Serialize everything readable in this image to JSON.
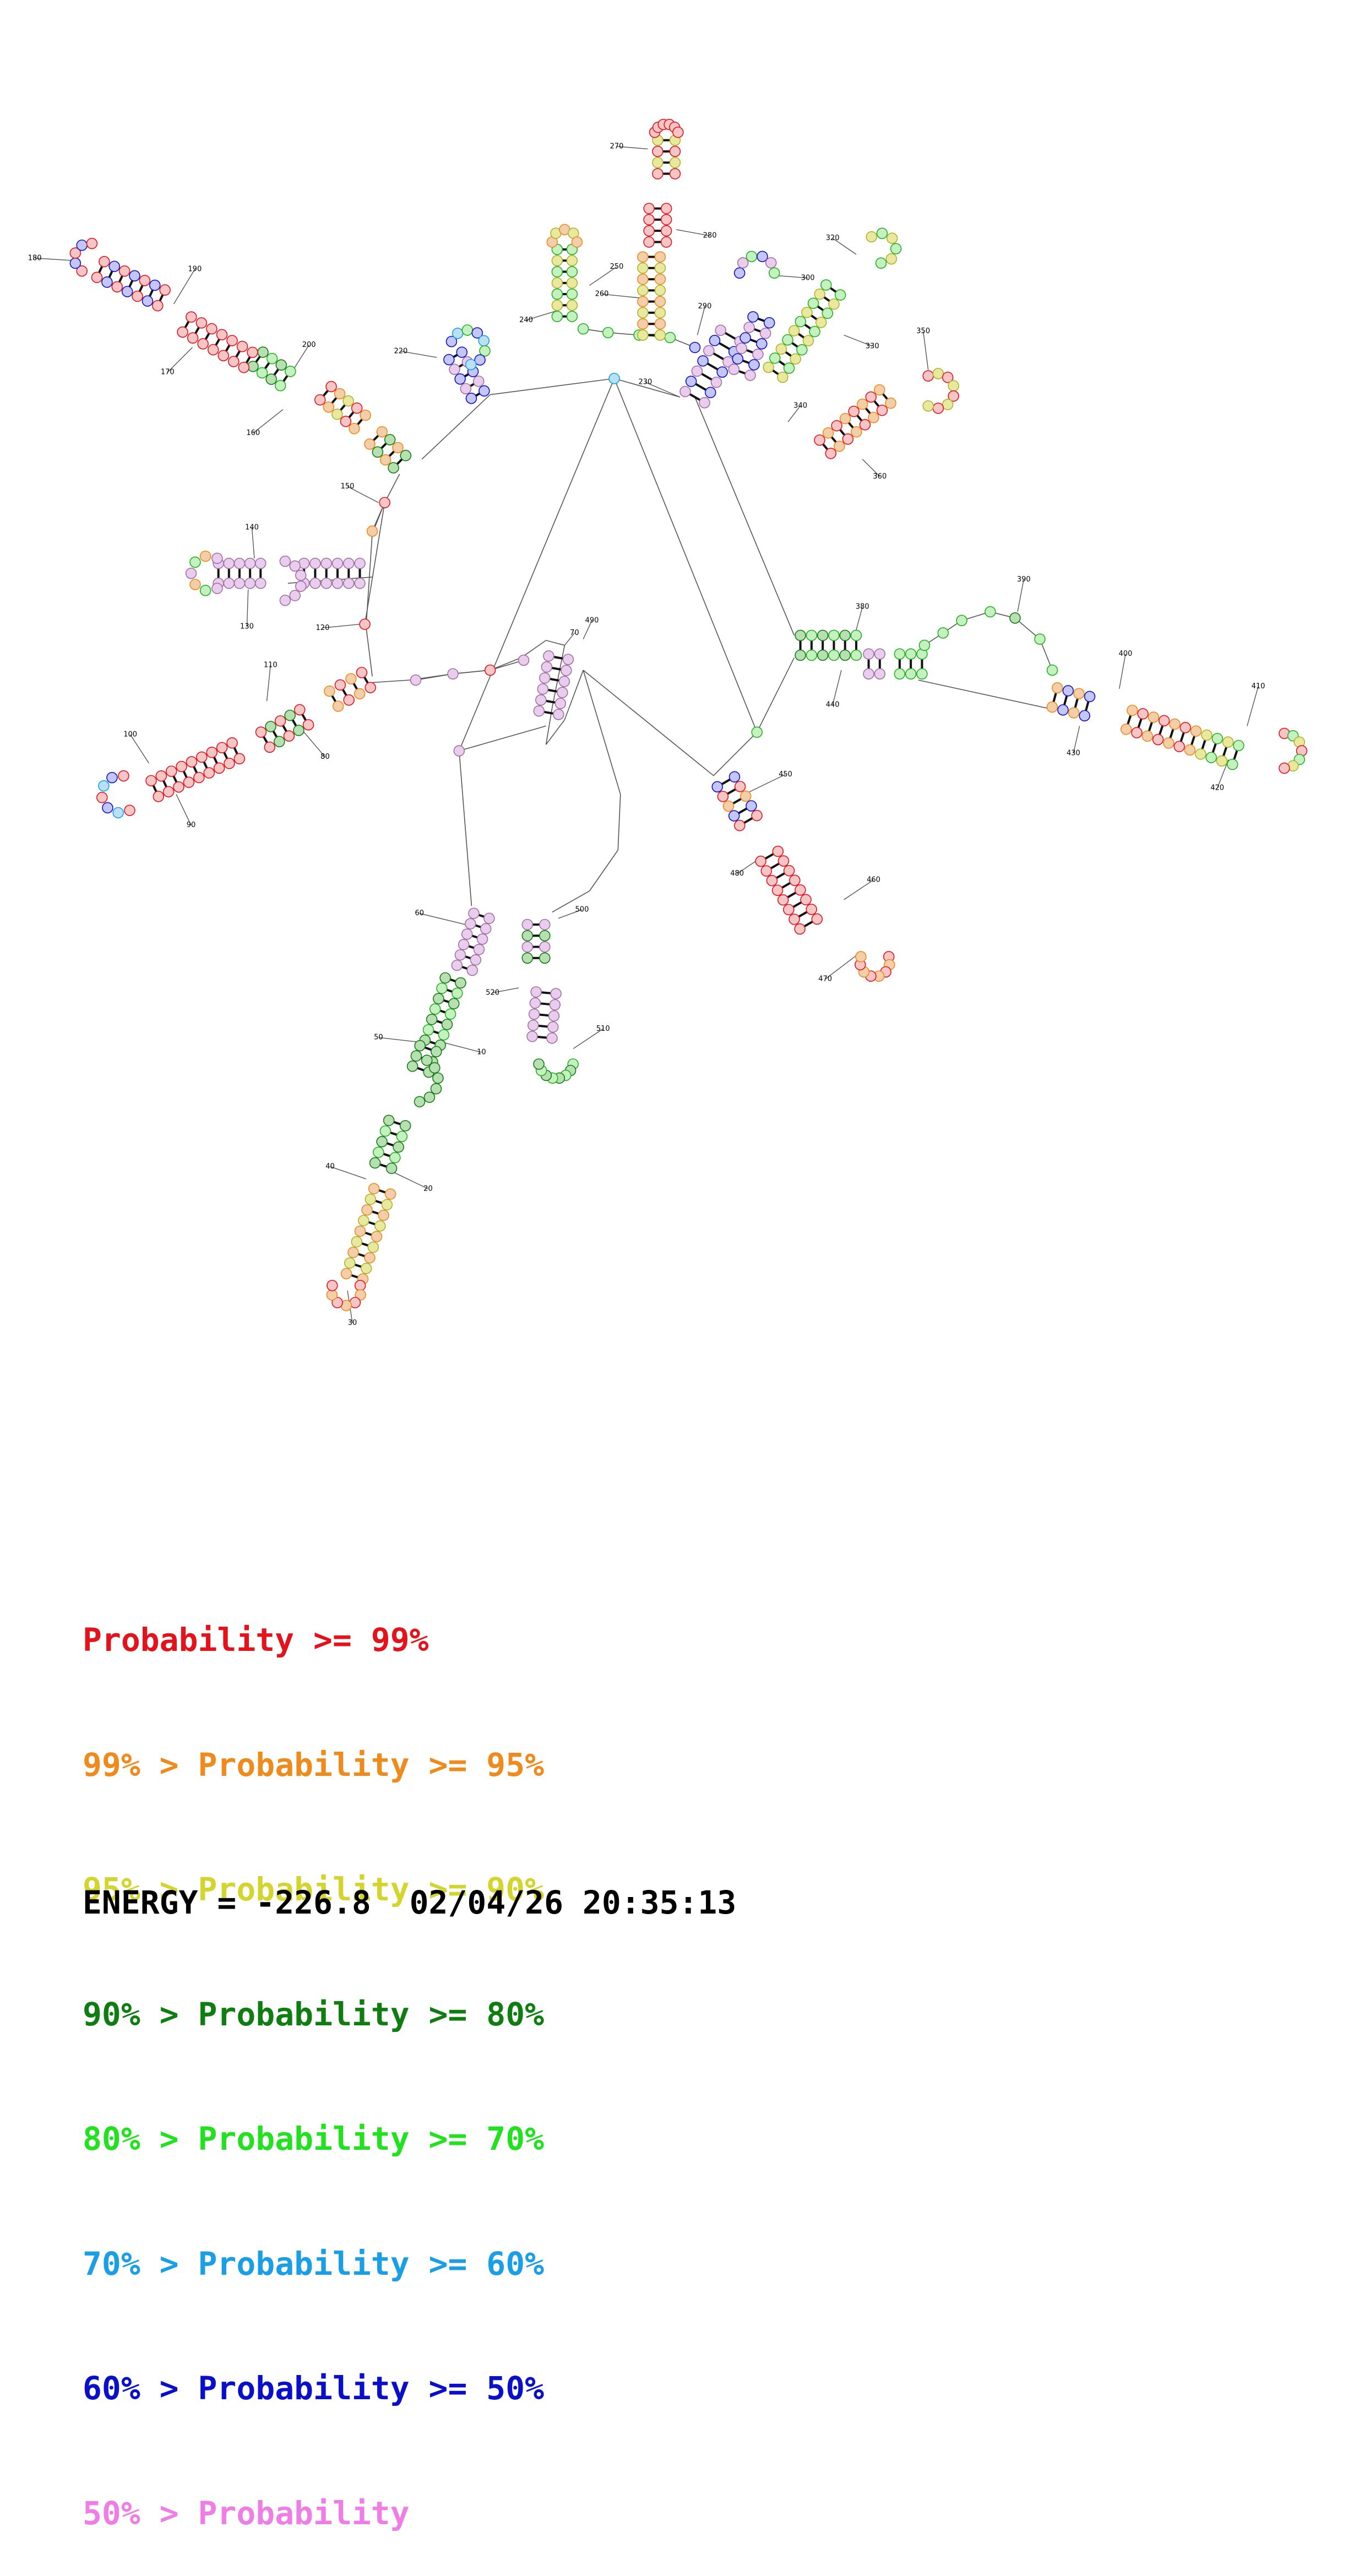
{
  "legend": [
    {
      "prefix": "",
      "label": "Probability",
      "suffix": ">= 99%",
      "color": "#e4131b"
    },
    {
      "prefix": "99% > ",
      "label": "Probability",
      "suffix": ">= 95%",
      "color": "#ef8a1c"
    },
    {
      "prefix": "95% > ",
      "label": "Probability",
      "suffix": ">= 90%",
      "color": "#d3d42e"
    },
    {
      "prefix": "90% > ",
      "label": "Probability",
      "suffix": ">= 80%",
      "color": "#0f7d10"
    },
    {
      "prefix": "80% > ",
      "label": "Probability",
      "suffix": ">= 70%",
      "color": "#22e11f"
    },
    {
      "prefix": "70% > ",
      "label": "Probability",
      "suffix": ">= 60%",
      "color": "#1a9ee6"
    },
    {
      "prefix": "60% > ",
      "label": "Probability",
      "suffix": ">= 50%",
      "color": "#0a10c9"
    },
    {
      "prefix": "50% > ",
      "label": "Probability",
      "suffix": "",
      "color": "#ee7ee6"
    }
  ],
  "footer": {
    "energy_label": "ENERGY =",
    "energy_value": "-226.8",
    "timestamp": "02/04/26 20:35:13"
  },
  "diagram": {
    "position_labels": [
      "10",
      "20",
      "30",
      "40",
      "50",
      "60",
      "70",
      "80",
      "90",
      "100",
      "110",
      "120",
      "130",
      "140",
      "150",
      "160",
      "170",
      "180",
      "190",
      "200",
      "220",
      "230",
      "240",
      "250",
      "260",
      "270",
      "280",
      "290",
      "300",
      "320",
      "330",
      "340",
      "350",
      "360",
      "380",
      "390",
      "400",
      "410",
      "420",
      "430",
      "440",
      "450",
      "460",
      "470",
      "480",
      "490",
      "500",
      "510",
      "520"
    ],
    "fill_colors": {
      "red": "#f6c6c6",
      "orange": "#f3ceaa",
      "yellow": "#e8e99e",
      "dkgreen": "#b7dfb1",
      "green": "#c4f1bf",
      "cyan": "#b8e1f6",
      "blue": "#c3c6f6",
      "pink": "#e9cdee"
    },
    "stroke_colors": {
      "red": "#e4131b",
      "orange": "#ef8a1c",
      "yellow": "#b0b12a",
      "dkgreen": "#0f7d10",
      "green": "#22b11f",
      "cyan": "#1a9ee6",
      "blue": "#0a10c9",
      "pink": "#a36ea0"
    }
  }
}
